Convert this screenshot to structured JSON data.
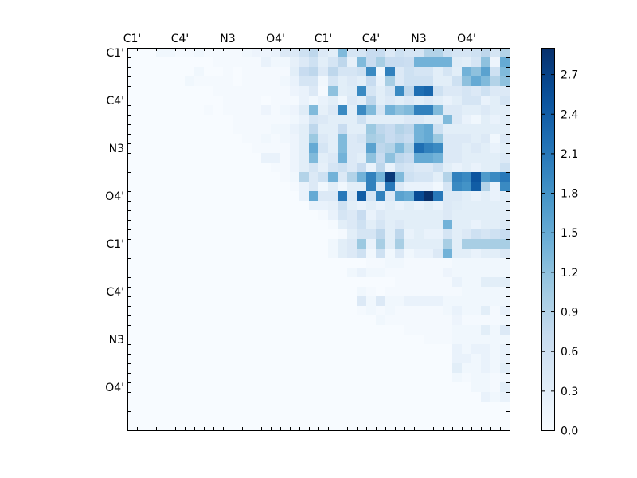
{
  "chart_data": {
    "type": "heatmap",
    "colormap": "Blues",
    "grid": false,
    "n_rows": 40,
    "n_cols": 40,
    "x_tick_labels": [
      "C1'",
      "C4'",
      "N3",
      "O4'",
      "C1'",
      "C4'",
      "N3",
      "O4'"
    ],
    "y_tick_labels": [
      "C1'",
      "C4'",
      "N3",
      "O4'",
      "C1'",
      "C4'",
      "N3",
      "O4'"
    ],
    "colorbar": {
      "min": 0.0,
      "max": 2.9,
      "ticks": [
        0.0,
        0.3,
        0.6,
        0.9,
        1.2,
        1.5,
        1.8,
        2.1,
        2.4,
        2.7
      ],
      "tick_labels": [
        "0.0",
        "0.3",
        "0.6",
        "0.9",
        "1.2",
        "1.5",
        "1.8",
        "2.1",
        "2.4",
        "2.7"
      ]
    },
    "rows": [
      "0.000 0.000 0.000 0.100 0.100 0.050 0.050 0.100 0.050 0.050 0.050 0.050 0.100 0.150 0.150 0.200 0.400 0.400 0.600 0.800 0.400 0.300 1.300 0.500 0.500 0.700 0.700 0.400 0.600 0.500 0.500 0.900 0.900 0.600 0.500 0.500 0.600 0.800 0.500 0.900",
      "0.000 0.000 0.000 0.000 0.000 0.000 0.000 0.000 0.000 0.050 0.050 0.050 0.050 0.050 0.200 0.100 0.100 0.250 0.400 0.600 0.300 0.500 0.800 0.250 1.300 0.700 1.000 0.700 0.700 0.650 1.400 1.400 1.400 1.400 0.350 0.300 0.500 1.200 0.150 1.500",
      "0.000 0.000 0.000 0.000 0.000 0.000 0.000 0.100 0.000 0.000 0.050 0.000 0.050 0.050 0.050 0.050 0.050 0.300 0.700 0.800 0.400 0.800 0.500 0.500 0.600 1.900 0.100 2.000 0.400 0.600 0.500 0.500 0.300 0.500 0.300 1.400 1.200 1.600 0.600 1.300",
      "0.000 0.000 0.000 0.000 0.000 0.000 0.100 0.050 0.050 0.050 0.050 0.000 0.050 0.050 0.050 0.050 0.100 0.200 0.500 0.500 0.100 0.500 0.300 0.400 0.300 0.700 0.200 1.000 0.400 0.600 0.600 0.600 0.300 0.300 0.600 1.200 1.500 1.300 0.900 1.200",
      "0.000 0.000 0.000 0.000 0.000 0.000 0.000 0.000 0.000 0.050 0.050 0.050 0.050 0.050 0.050 0.050 0.050 0.150 0.200 0.400 0.050 1.200 0.300 0.350 1.900 0.500 0.300 0.500 1.900 0.800 2.200 2.300 0.600 0.400 0.400 0.500 0.400 0.600 0.400 0.400",
      "0.000 0.000 0.000 0.000 0.000 0.000 0.000 0.000 0.000 0.000 0.050 0.050 0.050 0.050 0.000 0.050 0.050 0.050 0.200 0.100 0.200 0.300 0.100 0.400 0.300 0.800 0.300 0.400 0.300 0.400 0.300 0.400 0.300 0.200 0.300 0.500 0.500 0.200 0.300 0.500",
      "0.000 0.000 0.000 0.000 0.000 0.000 0.000 0.000 0.050 0.000 0.050 0.050 0.050 0.050 0.150 0.050 0.100 0.150 0.350 1.300 0.250 0.400 1.900 0.300 1.900 1.300 0.500 1.400 1.200 1.300 2.000 2.000 1.300 0.400 0.400 0.300 0.300 0.400 0.300 0.300",
      "0.000 0.000 0.000 0.000 0.000 0.000 0.000 0.000 0.000 0.000 0.000 0.050 0.050 0.050 0.050 0.050 0.050 0.100 0.200 0.500 0.400 0.300 0.300 0.300 0.600 0.300 0.300 0.300 0.300 0.400 0.400 0.300 0.300 1.300 0.400 0.200 0.100 0.300 0.200 0.300",
      "0.000 0.000 0.000 0.000 0.000 0.000 0.000 0.000 0.000 0.000 0.000 0.050 0.050 0.050 0.050 0.100 0.100 0.200 0.300 0.800 0.300 0.300 0.700 0.300 0.300 1.100 0.800 0.700 0.900 0.800 1.400 1.500 0.600 0.300 0.300 0.300 0.300 0.300 0.300 0.300",
      "0.000 0.000 0.000 0.000 0.000 0.000 0.000 0.000 0.000 0.000 0.000 0.000 0.050 0.050 0.100 0.050 0.100 0.150 0.300 1.100 0.400 0.300 1.300 0.400 0.500 1.000 0.900 0.700 0.800 0.700 1.400 1.500 1.100 0.400 0.400 0.400 0.300 0.400 0.100 0.400",
      "0.000 0.000 0.000 0.000 0.000 0.000 0.000 0.000 0.000 0.000 0.000 0.000 0.000 0.050 0.050 0.050 0.050 0.150 0.300 1.500 0.500 0.300 1.300 0.400 0.400 1.600 0.800 0.900 1.300 0.900 2.200 2.000 1.900 0.400 0.400 0.300 0.400 0.300 0.200 0.300",
      "0.000 0.000 0.000 0.000 0.000 0.000 0.000 0.000 0.000 0.000 0.000 0.000 0.000 0.000 0.200 0.200 0.050 0.150 0.300 1.300 0.300 0.400 1.400 0.400 0.300 1.200 0.700 1.200 0.800 0.700 1.500 1.500 1.400 0.400 0.400 0.300 0.300 0.300 0.300 0.400",
      "0.000 0.000 0.000 0.000 0.000 0.000 0.000 0.000 0.000 0.000 0.000 0.000 0.000 0.000 0.000 0.050 0.050 0.150 0.300 0.500 0.250 0.500 0.600 0.400 0.700 0.200 0.800 0.200 0.600 0.500 0.400 0.400 0.600 0.300 0.200 0.300 0.200 0.300 0.300 0.600",
      "0.000 0.000 0.000 0.000 0.000 0.000 0.000 0.000 0.000 0.000 0.000 0.000 0.000 0.000 0.000 0.000 0.050 0.100 0.900 0.400 0.600 1.400 0.400 0.900 1.400 2.000 1.400 2.800 1.300 0.600 0.500 0.500 0.300 0.900 2.000 1.900 2.500 1.700 1.900 2.100",
      "0.000 0.000 0.000 0.000 0.000 0.000 0.000 0.000 0.000 0.000 0.000 0.000 0.000 0.000 0.000 0.000 0.000 0.050 0.200 0.400 0.100 0.300 0.100 0.300 0.300 2.000 0.400 2.100 0.400 0.200 0.200 0.200 0.100 0.500 1.900 1.800 2.400 0.900 0.200 1.900",
      "0.000 0.000 0.000 0.000 0.000 0.000 0.000 0.000 0.000 0.000 0.000 0.000 0.000 0.000 0.000 0.000 0.000 0.000 0.200 1.500 0.400 0.400 2.100 0.400 2.400 0.500 2.000 0.400 1.600 1.500 2.600 2.900 2.100 0.400 0.400 0.300 0.200 0.300 0.200 0.300",
      "0.000 0.000 0.000 0.000 0.000 0.000 0.000 0.000 0.000 0.000 0.000 0.000 0.000 0.000 0.000 0.000 0.000 0.000 0.000 0.200 0.200 0.250 0.600 0.300 0.200 0.300 0.200 0.300 0.200 0.300 0.200 0.300 0.200 0.400 0.350 0.300 0.300 0.300 0.300 0.300",
      "0.000 0.000 0.000 0.000 0.000 0.000 0.000 0.000 0.000 0.000 0.000 0.000 0.000 0.000 0.000 0.000 0.000 0.000 0.000 0.000 0.050 0.200 0.500 0.400 0.700 0.200 0.400 0.300 0.300 0.300 0.300 0.300 0.300 0.400 0.300 0.300 0.300 0.300 0.300 0.300",
      "0.000 0.000 0.000 0.000 0.000 0.000 0.000 0.000 0.000 0.000 0.000 0.000 0.000 0.000 0.000 0.000 0.000 0.000 0.000 0.000 0.000 0.050 0.300 0.400 0.600 0.300 0.500 0.300 0.400 0.300 0.300 0.300 0.300 1.400 0.300 0.300 0.200 0.300 0.300 0.400",
      "0.000 0.000 0.000 0.000 0.000 0.000 0.000 0.000 0.000 0.000 0.000 0.000 0.000 0.000 0.000 0.000 0.000 0.000 0.000 0.000 0.000 0.000 0.050 0.300 0.500 0.500 0.800 0.300 0.800 0.200 0.300 0.200 0.200 0.500 0.300 0.400 0.600 0.500 0.600 0.700",
      "0.000 0.000 0.000 0.000 0.000 0.000 0.000 0.000 0.000 0.000 0.000 0.000 0.000 0.000 0.000 0.000 0.000 0.000 0.000 0.000 0.000 0.100 0.300 0.400 1.100 0.200 1.000 0.300 1.000 0.300 0.300 0.300 0.300 1.000 0.300 1.000 1.000 1.000 1.000 1.000",
      "0.000 0.000 0.000 0.000 0.000 0.000 0.000 0.000 0.000 0.000 0.000 0.000 0.000 0.000 0.000 0.000 0.000 0.000 0.000 0.000 0.000 0.100 0.300 0.400 0.600 0.100 0.600 0.100 0.400 0.100 0.200 0.200 0.400 1.400 0.300 0.300 0.200 0.300 0.300 0.400",
      "0.000 0.000 0.000 0.000 0.000 0.000 0.000 0.000 0.000 0.000 0.000 0.000 0.000 0.000 0.000 0.000 0.000 0.000 0.000 0.000 0.000 0.000 0.000 0.000 0.000 0.050 0.050 0.100 0.100 0.050 0.050 0.050 0.050 0.050 0.100 0.100 0.100 0.100 0.100 0.100",
      "0.000 0.000 0.000 0.000 0.000 0.000 0.000 0.000 0.000 0.000 0.000 0.000 0.000 0.000 0.000 0.000 0.000 0.000 0.000 0.000 0.000 0.000 0.000 0.100 0.200 0.100 0.100 0.050 0.050 0.050 0.050 0.050 0.050 0.150 0.100 0.100 0.100 0.100 0.100 0.100",
      "0.000 0.000 0.000 0.000 0.000 0.000 0.000 0.000 0.000 0.000 0.000 0.000 0.000 0.000 0.000 0.000 0.000 0.000 0.000 0.000 0.000 0.000 0.000 0.000 0.000 0.000 0.000 0.000 0.050 0.050 0.050 0.050 0.050 0.050 0.200 0.100 0.100 0.300 0.300 0.300",
      "0.000 0.000 0.000 0.000 0.000 0.000 0.000 0.000 0.000 0.000 0.000 0.000 0.000 0.000 0.000 0.000 0.000 0.000 0.000 0.000 0.000 0.000 0.000 0.000 0.100 0.050 0.000 0.050 0.050 0.050 0.050 0.050 0.050 0.050 0.050 0.100 0.100 0.100 0.100 0.100",
      "0.000 0.000 0.000 0.000 0.000 0.000 0.000 0.000 0.000 0.000 0.000 0.000 0.000 0.000 0.000 0.000 0.000 0.000 0.000 0.000 0.000 0.000 0.000 0.000 0.400 0.100 0.400 0.100 0.100 0.200 0.200 0.200 0.200 0.100 0.100 0.100 0.100 0.100 0.100 0.100",
      "0.000 0.000 0.000 0.000 0.000 0.000 0.000 0.000 0.000 0.000 0.000 0.000 0.000 0.000 0.000 0.000 0.000 0.000 0.000 0.000 0.000 0.000 0.000 0.000 0.050 0.100 0.050 0.100 0.050 0.050 0.050 0.050 0.050 0.100 0.200 0.100 0.100 0.300 0.050 0.200",
      "0.000 0.000 0.000 0.000 0.000 0.000 0.000 0.000 0.000 0.000 0.000 0.000 0.000 0.000 0.000 0.000 0.000 0.000 0.000 0.000 0.000 0.000 0.000 0.000 0.000 0.000 0.100 0.050 0.050 0.050 0.050 0.050 0.050 0.050 0.150 0.050 0.050 0.050 0.050 0.100",
      "0.000 0.000 0.000 0.000 0.000 0.000 0.000 0.000 0.000 0.000 0.000 0.000 0.000 0.000 0.000 0.000 0.000 0.000 0.000 0.000 0.000 0.000 0.000 0.000 0.000 0.000 0.000 0.000 0.000 0.050 0.050 0.050 0.050 0.050 0.100 0.100 0.100 0.300 0.100 0.400",
      "0.000 0.000 0.000 0.000 0.000 0.000 0.000 0.000 0.000 0.000 0.000 0.000 0.000 0.000 0.000 0.000 0.000 0.000 0.000 0.000 0.000 0.000 0.000 0.000 0.000 0.000 0.000 0.000 0.000 0.000 0.000 0.050 0.050 0.050 0.100 0.100 0.100 0.100 0.100 0.100",
      "0.000 0.000 0.000 0.000 0.000 0.000 0.000 0.000 0.000 0.000 0.000 0.000 0.000 0.000 0.000 0.000 0.000 0.000 0.000 0.000 0.000 0.000 0.000 0.000 0.000 0.000 0.000 0.000 0.000 0.000 0.000 0.000 0.000 0.000 0.200 0.100 0.200 0.200 0.100 0.200",
      "0.000 0.000 0.000 0.000 0.000 0.000 0.000 0.000 0.000 0.000 0.000 0.000 0.000 0.000 0.000 0.000 0.000 0.000 0.000 0.000 0.000 0.000 0.000 0.000 0.000 0.000 0.000 0.000 0.000 0.000 0.000 0.000 0.000 0.000 0.200 0.200 0.100 0.200 0.100 0.200",
      "0.000 0.000 0.000 0.000 0.000 0.000 0.000 0.000 0.000 0.000 0.000 0.000 0.000 0.000 0.000 0.000 0.000 0.000 0.000 0.000 0.000 0.000 0.000 0.000 0.000 0.000 0.000 0.000 0.000 0.000 0.000 0.000 0.000 0.000 0.300 0.100 0.100 0.200 0.100 0.300",
      "0.000 0.000 0.000 0.000 0.000 0.000 0.000 0.000 0.000 0.000 0.000 0.000 0.000 0.000 0.000 0.000 0.000 0.000 0.000 0.000 0.000 0.000 0.000 0.000 0.000 0.000 0.000 0.000 0.000 0.000 0.000 0.000 0.000 0.000 0.100 0.050 0.100 0.100 0.050 0.100",
      "0.000 0.000 0.000 0.000 0.000 0.000 0.000 0.000 0.000 0.000 0.000 0.000 0.000 0.000 0.000 0.000 0.000 0.000 0.000 0.000 0.000 0.000 0.000 0.000 0.000 0.000 0.000 0.000 0.000 0.000 0.000 0.000 0.000 0.000 0.000 0.000 0.100 0.100 0.050 0.300",
      "0.000 0.000 0.000 0.000 0.000 0.000 0.000 0.000 0.000 0.000 0.000 0.000 0.000 0.000 0.000 0.000 0.000 0.000 0.000 0.000 0.000 0.000 0.000 0.000 0.000 0.000 0.000 0.000 0.000 0.000 0.000 0.000 0.000 0.000 0.000 0.000 0.000 0.200 0.100 0.200",
      "0.000 0.000 0.000 0.000 0.000 0.000 0.000 0.000 0.000 0.000 0.000 0.000 0.000 0.000 0.000 0.000 0.000 0.000 0.000 0.000 0.000 0.000 0.000 0.000 0.000 0.000 0.000 0.000 0.000 0.000 0.000 0.000 0.000 0.000 0.000 0.000 0.000 0.000 0.000 0.000",
      "0.000 0.000 0.000 0.000 0.000 0.000 0.000 0.000 0.000 0.000 0.000 0.000 0.000 0.000 0.000 0.000 0.000 0.000 0.000 0.000 0.000 0.000 0.000 0.000 0.000 0.000 0.000 0.000 0.000 0.000 0.000 0.000 0.000 0.000 0.000 0.000 0.000 0.000 0.000 0.000",
      "0.000 0.000 0.000 0.000 0.000 0.000 0.000 0.000 0.000 0.000 0.000 0.000 0.000 0.000 0.000 0.000 0.000 0.000 0.000 0.000 0.000 0.000 0.000 0.000 0.000 0.000 0.000 0.000 0.000 0.000 0.000 0.000 0.000 0.000 0.000 0.000 0.000 0.000 0.000 0.000"
    ]
  }
}
